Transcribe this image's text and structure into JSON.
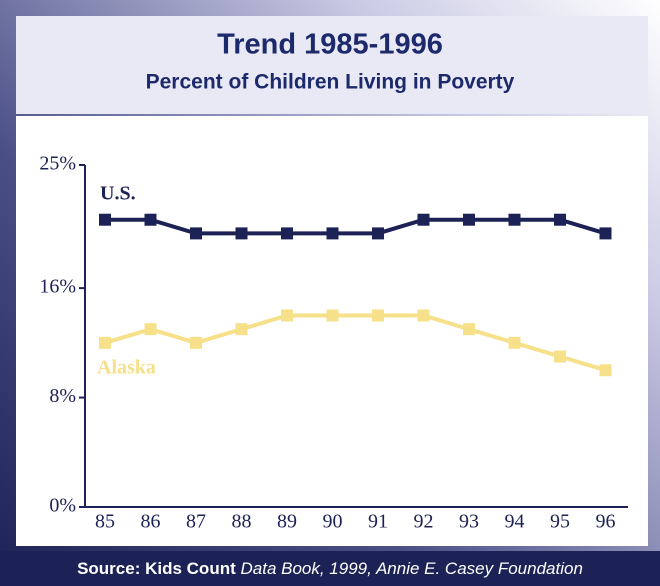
{
  "chart_data": {
    "type": "line",
    "title": "Trend 1985-1996",
    "subtitle": "Percent of Children Living in Poverty",
    "categories": [
      "85",
      "86",
      "87",
      "88",
      "89",
      "90",
      "91",
      "92",
      "93",
      "94",
      "95",
      "96"
    ],
    "series": [
      {
        "name": "U.S.",
        "color": "#1c2255",
        "values": [
          21,
          21,
          20,
          20,
          20,
          20,
          20,
          21,
          21,
          21,
          21,
          20
        ]
      },
      {
        "name": "Alaska",
        "color": "#f6e08a",
        "values": [
          12,
          13,
          12,
          13,
          14,
          14,
          14,
          14,
          13,
          12,
          11,
          10
        ]
      }
    ],
    "ylim": [
      0,
      25
    ],
    "yticks": [
      {
        "value": 0,
        "label": "0%"
      },
      {
        "value": 8,
        "label": "8%"
      },
      {
        "value": 16,
        "label": "16%"
      },
      {
        "value": 25,
        "label": "25%"
      }
    ],
    "source": {
      "bold": "Source: Kids Count",
      "italic": "Data Book, 1999, Annie E. Casey Foundation"
    }
  }
}
